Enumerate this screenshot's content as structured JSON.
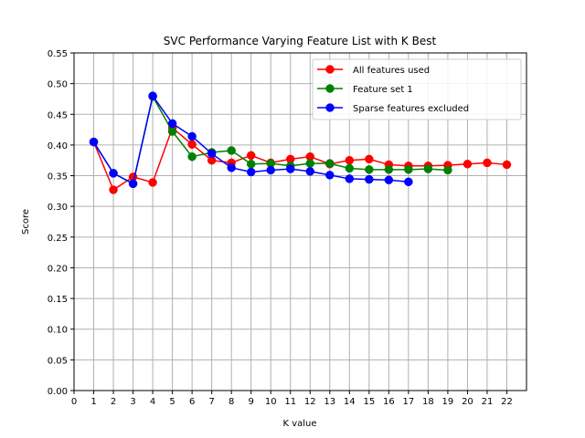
{
  "chart_data": {
    "type": "line",
    "title": "SVC Performance Varying Feature List with K Best",
    "xlabel": "K value",
    "ylabel": "Score",
    "xlim": [
      0,
      23
    ],
    "ylim": [
      0,
      0.55
    ],
    "xticks": [
      0,
      1,
      2,
      3,
      4,
      5,
      6,
      7,
      8,
      9,
      10,
      11,
      12,
      13,
      14,
      15,
      16,
      17,
      18,
      19,
      20,
      21,
      22
    ],
    "yticks": [
      "0.00",
      "0.05",
      "0.10",
      "0.15",
      "0.20",
      "0.25",
      "0.30",
      "0.35",
      "0.40",
      "0.45",
      "0.50",
      "0.55"
    ],
    "grid": true,
    "legend_position": "upper right",
    "series": [
      {
        "name": "All features used",
        "color": "#ff0000",
        "marker": "circle",
        "x": [
          1,
          2,
          3,
          4,
          5,
          6,
          7,
          8,
          9,
          10,
          11,
          12,
          13,
          14,
          15,
          16,
          17,
          18,
          19,
          20,
          21,
          22
        ],
        "y": [
          0.405,
          0.327,
          0.348,
          0.339,
          0.428,
          0.401,
          0.375,
          0.371,
          0.383,
          0.371,
          0.377,
          0.381,
          0.369,
          0.375,
          0.377,
          0.368,
          0.366,
          0.366,
          0.367,
          0.369,
          0.371,
          0.368
        ]
      },
      {
        "name": "Feature set 1",
        "color": "#008000",
        "marker": "circle",
        "x": [
          1,
          2,
          3,
          4,
          5,
          6,
          7,
          8,
          9,
          10,
          11,
          12,
          13,
          14,
          15,
          16,
          17,
          18,
          19
        ],
        "y": [
          0.405,
          0.354,
          0.337,
          0.479,
          0.422,
          0.381,
          0.388,
          0.391,
          0.369,
          0.37,
          0.366,
          0.37,
          0.37,
          0.362,
          0.36,
          0.36,
          0.36,
          0.361,
          0.359
        ]
      },
      {
        "name": "Sparse features excluded",
        "color": "#0000ff",
        "marker": "circle",
        "x": [
          1,
          2,
          3,
          4,
          5,
          6,
          7,
          8,
          9,
          10,
          11,
          12,
          13,
          14,
          15,
          16,
          17
        ],
        "y": [
          0.405,
          0.354,
          0.337,
          0.48,
          0.435,
          0.414,
          0.386,
          0.363,
          0.356,
          0.359,
          0.361,
          0.357,
          0.351,
          0.345,
          0.344,
          0.343,
          0.34
        ]
      }
    ]
  }
}
